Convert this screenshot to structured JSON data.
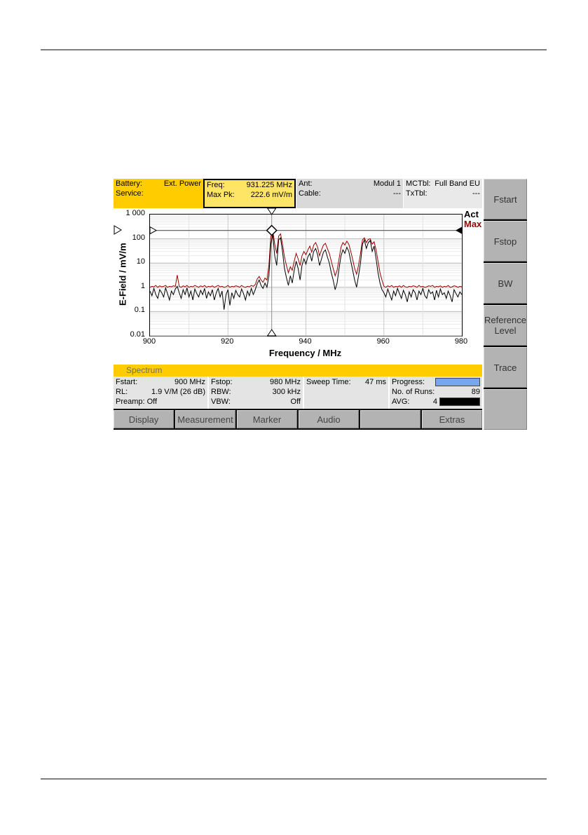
{
  "status_bar": {
    "battery_label": "Battery:",
    "battery_value": "Ext. Power",
    "service_label": "Service:",
    "service_value": "",
    "freq_label": "Freq:",
    "freq_value": "931.225 MHz",
    "maxpk_label": "Max Pk:",
    "maxpk_value": "222.6 mV/m",
    "ant_label": "Ant:",
    "ant_value": "Modul 1",
    "cable_label": "Cable:",
    "cable_value": "---",
    "mctbl_label": "MCTbl:",
    "mctbl_value": "Full Band EU",
    "txtbl_label": "TxTbl:",
    "txtbl_value": "---"
  },
  "softkeys": [
    {
      "label": "Fstart"
    },
    {
      "label": "Fstop"
    },
    {
      "label": "BW"
    },
    {
      "label": "Reference Level"
    },
    {
      "label": "Trace"
    },
    {
      "label": ""
    }
  ],
  "mode_bar": {
    "label": "Spectrum"
  },
  "info": {
    "fstart_label": "Fstart:",
    "fstart_value": "900 MHz",
    "rl_label": "RL:",
    "rl_value": "1.9 V/M (26 dB)",
    "preamp_text": "Preamp: Off",
    "fstop_label": "Fstop:",
    "fstop_value": "980 MHz",
    "rbw_label": "RBW:",
    "rbw_value": "300 kHz",
    "vbw_label": "VBW:",
    "vbw_value": "Off",
    "sweep_label": "Sweep Time:",
    "sweep_value": "47 ms",
    "progress_label": "Progress:",
    "progress_percent": 100,
    "runs_label": "No. of Runs:",
    "runs_value": "89",
    "avg_label": "AVG:",
    "avg_value": "4"
  },
  "menu": [
    {
      "label": "Display"
    },
    {
      "label": "Measurement"
    },
    {
      "label": "Marker"
    },
    {
      "label": "Audio"
    },
    {
      "label": ""
    },
    {
      "label": "Extras"
    }
  ],
  "colors": {
    "accent_yellow": "#ffcc00",
    "freq_box_yellow": "#ffe566",
    "act_trace": "#000000",
    "max_trace": "#990000",
    "progress_blue": "#7aa4f0"
  },
  "chart_data": {
    "type": "line",
    "title": "",
    "xlabel": "Frequency / MHz",
    "ylabel": "E-Field / mV/m",
    "xlim": [
      900,
      980
    ],
    "ylim_log": [
      0.01,
      1000
    ],
    "x_ticks": [
      900,
      920,
      940,
      960,
      980
    ],
    "y_ticks": [
      "1 000",
      "100",
      "10",
      "1",
      "0.1",
      "0.01"
    ],
    "grid": true,
    "legend_position": "top-right-outside",
    "x_start": 900,
    "x_step": 0.5,
    "marker": {
      "freq_mhz": 931.225,
      "level_mvm": 222.6
    },
    "series": [
      {
        "name": "Act",
        "color": "#000000",
        "values": [
          0.7,
          0.45,
          0.9,
          0.5,
          0.35,
          0.8,
          0.6,
          0.4,
          0.95,
          0.55,
          0.3,
          0.7,
          0.5,
          0.85,
          1.1,
          0.6,
          0.35,
          0.8,
          0.5,
          0.95,
          0.4,
          0.7,
          0.3,
          0.85,
          0.55,
          0.4,
          0.75,
          0.5,
          0.9,
          0.35,
          0.65,
          0.45,
          0.8,
          0.3,
          0.6,
          0.9,
          0.4,
          0.7,
          0.12,
          0.5,
          0.8,
          0.18,
          0.6,
          0.35,
          0.75,
          0.5,
          0.4,
          0.85,
          0.55,
          0.3,
          0.7,
          0.45,
          0.9,
          0.5,
          0.8,
          1.4,
          2.0,
          1.2,
          0.9,
          1.5,
          1.0,
          3,
          60,
          150,
          20,
          8,
          90,
          110,
          30,
          6,
          2.5,
          1.2,
          3,
          1.5,
          5,
          12,
          6,
          2,
          8,
          15,
          9,
          18,
          25,
          12,
          30,
          40,
          22,
          8,
          15,
          28,
          35,
          18,
          10,
          4,
          2,
          0.8,
          1.5,
          6,
          20,
          35,
          25,
          45,
          30,
          12,
          5,
          2,
          1,
          3,
          10,
          60,
          90,
          40,
          70,
          85,
          30,
          50,
          15,
          4,
          1.5,
          0.8,
          0.6,
          0.4,
          0.85,
          0.5,
          0.3,
          0.7,
          0.45,
          0.9,
          0.55,
          0.35,
          0.75,
          0.5,
          0.25,
          0.65,
          0.4,
          0.8,
          0.6,
          0.3,
          0.7,
          0.5,
          0.9,
          0.45,
          0.35,
          0.8,
          0.55,
          0.65,
          0.3,
          0.75,
          0.4,
          0.85,
          0.5,
          0.6,
          0.35,
          0.7,
          0.45,
          0.25,
          0.8,
          0.55,
          0.4,
          0.65,
          0.5
        ]
      },
      {
        "name": "Max",
        "color": "#990000",
        "values": [
          1.0,
          1.1,
          1.05,
          1.2,
          1.0,
          1.15,
          1.05,
          1.1,
          1.2,
          1.0,
          1.1,
          1.05,
          1.15,
          1.1,
          3.2,
          1.1,
          1.0,
          1.15,
          1.05,
          1.2,
          1.0,
          1.1,
          1.05,
          1.2,
          1.1,
          1.0,
          1.15,
          1.05,
          1.2,
          1.0,
          1.1,
          1.05,
          1.15,
          1.0,
          1.1,
          1.2,
          1.05,
          1.1,
          1.0,
          1.05,
          1.2,
          1.0,
          1.1,
          1.05,
          1.15,
          1.1,
          1.0,
          1.2,
          1.05,
          1.0,
          1.1,
          1.05,
          1.2,
          1.1,
          1.3,
          2.2,
          2.8,
          2.0,
          1.6,
          2.4,
          2.0,
          8,
          120,
          222.6,
          60,
          25,
          130,
          160,
          60,
          18,
          8,
          4,
          7,
          5,
          12,
          25,
          15,
          8,
          20,
          30,
          22,
          35,
          50,
          28,
          55,
          70,
          45,
          20,
          35,
          55,
          65,
          40,
          25,
          12,
          6,
          3,
          5,
          15,
          45,
          70,
          55,
          80,
          60,
          30,
          14,
          6,
          3.5,
          8,
          25,
          90,
          110,
          70,
          95,
          100,
          60,
          75,
          35,
          12,
          4,
          2,
          1.1,
          1.0,
          1.15,
          1.05,
          1.2,
          1.0,
          1.1,
          1.05,
          1.15,
          1.0,
          1.2,
          1.05,
          1.0,
          1.1,
          1.05,
          1.15,
          1.1,
          1.0,
          1.2,
          1.05,
          1.1,
          1.0,
          1.05,
          1.15,
          1.1,
          1.2,
          1.0,
          1.1,
          1.05,
          1.15,
          1.0,
          1.1,
          1.05,
          1.2,
          1.0,
          1.05,
          1.15,
          1.1,
          1.0,
          1.1,
          1.05
        ]
      }
    ]
  }
}
